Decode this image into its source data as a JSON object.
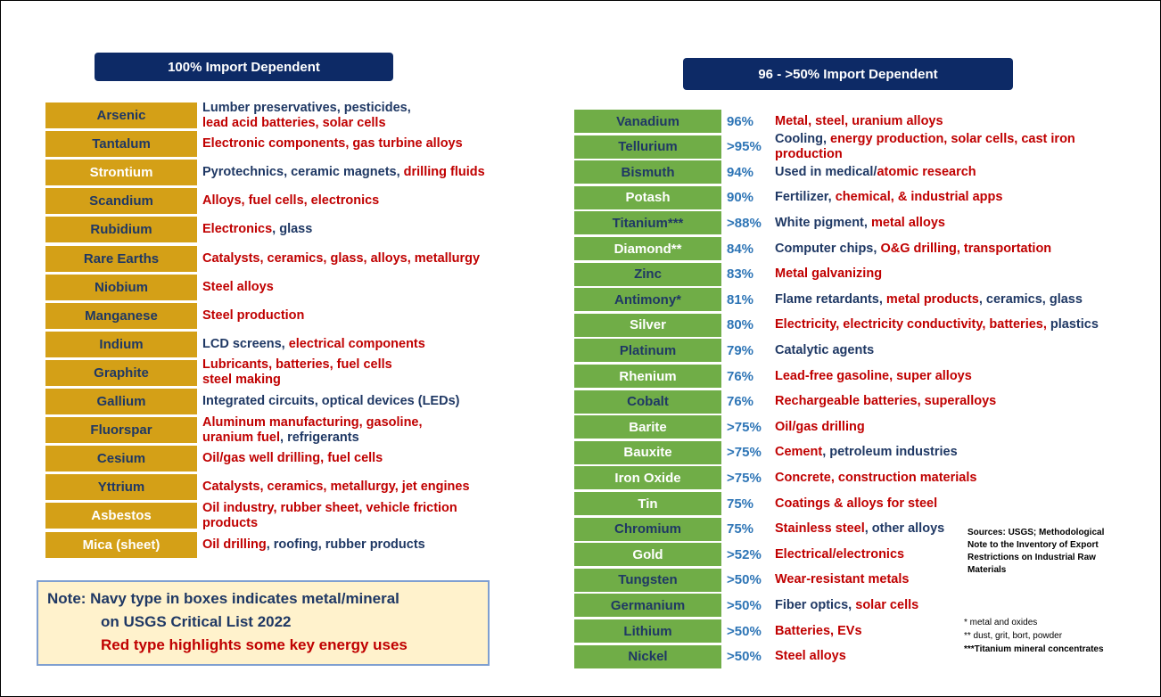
{
  "left": {
    "header": "100% Import Dependent",
    "items": [
      {
        "name": "Arsenic",
        "name_color": "navy",
        "lines": [
          [
            {
              "text": "Lumber preservatives, pesticides,",
              "color": "navy"
            }
          ],
          [
            {
              "text": "lead acid batteries, solar cells",
              "color": "red"
            }
          ]
        ]
      },
      {
        "name": "Tantalum",
        "name_color": "navy",
        "lines": [
          [
            {
              "text": "Electronic components, gas turbine alloys",
              "color": "red"
            }
          ]
        ]
      },
      {
        "name": "Strontium",
        "name_color": "white",
        "lines": [
          [
            {
              "text": "Pyrotechnics, ceramic magnets, ",
              "color": "navy"
            },
            {
              "text": "drilling fluids",
              "color": "red"
            }
          ]
        ]
      },
      {
        "name": "Scandium",
        "name_color": "navy",
        "lines": [
          [
            {
              "text": "Alloys, fuel cells, electronics",
              "color": "red"
            }
          ]
        ]
      },
      {
        "name": "Rubidium",
        "name_color": "navy",
        "lines": [
          [
            {
              "text": "Electronics",
              "color": "red"
            },
            {
              "text": ", glass",
              "color": "navy"
            }
          ]
        ]
      },
      {
        "name": "Rare Earths",
        "name_color": "navy",
        "lines": [
          [
            {
              "text": "Catalysts, ceramics, glass, alloys, metallurgy",
              "color": "red"
            }
          ]
        ]
      },
      {
        "name": "Niobium",
        "name_color": "navy",
        "lines": [
          [
            {
              "text": "Steel alloys",
              "color": "red"
            }
          ]
        ]
      },
      {
        "name": "Manganese",
        "name_color": "navy",
        "lines": [
          [
            {
              "text": "Steel production",
              "color": "red"
            }
          ]
        ]
      },
      {
        "name": "Indium",
        "name_color": "navy",
        "lines": [
          [
            {
              "text": "LCD screens, ",
              "color": "navy"
            },
            {
              "text": "electrical components",
              "color": "red"
            }
          ]
        ]
      },
      {
        "name": "Graphite",
        "name_color": "navy",
        "lines": [
          [
            {
              "text": "Lubricants, batteries, fuel cells",
              "color": "red"
            }
          ],
          [
            {
              "text": "steel making",
              "color": "red"
            }
          ]
        ]
      },
      {
        "name": "Gallium",
        "name_color": "navy",
        "lines": [
          [
            {
              "text": "Integrated circuits, optical devices (LEDs)",
              "color": "navy"
            }
          ]
        ]
      },
      {
        "name": "Fluorspar",
        "name_color": "navy",
        "lines": [
          [
            {
              "text": "Aluminum manufacturing, gasoline,",
              "color": "red"
            }
          ],
          [
            {
              "text": "uranium fuel",
              "color": "red"
            },
            {
              "text": ", refrigerants",
              "color": "navy"
            }
          ]
        ]
      },
      {
        "name": "Cesium",
        "name_color": "navy",
        "lines": [
          [
            {
              "text": "Oil/gas well drilling, fuel cells",
              "color": "red"
            }
          ]
        ]
      },
      {
        "name": "Yttrium",
        "name_color": "navy",
        "lines": [
          [
            {
              "text": "Catalysts, ceramics, metallurgy, jet engines",
              "color": "red"
            }
          ]
        ]
      },
      {
        "name": "Asbestos",
        "name_color": "white",
        "lines": [
          [
            {
              "text": "Oil industry, rubber sheet, vehicle friction",
              "color": "red"
            }
          ],
          [
            {
              "text": "products",
              "color": "red"
            }
          ]
        ]
      },
      {
        "name": "Mica (sheet)",
        "name_color": "white",
        "lines": [
          [
            {
              "text": "Oil drilling",
              "color": "red"
            },
            {
              "text": ", roofing, rubber products",
              "color": "navy"
            }
          ]
        ]
      }
    ]
  },
  "right": {
    "header": "96 - >50% Import Dependent",
    "items": [
      {
        "name": "Vanadium",
        "name_color": "navy",
        "pct": "96%",
        "lines": [
          [
            {
              "text": "Metal, steel, uranium alloys",
              "color": "red"
            }
          ]
        ]
      },
      {
        "name": "Tellurium",
        "name_color": "navy",
        "pct": ">95%",
        "lines": [
          [
            {
              "text": "Cooling, ",
              "color": "navy"
            },
            {
              "text": "energy production, solar cells, cast iron",
              "color": "red"
            }
          ],
          [
            {
              "text": "production",
              "color": "red"
            }
          ]
        ]
      },
      {
        "name": "Bismuth",
        "name_color": "navy",
        "pct": "94%",
        "lines": [
          [
            {
              "text": "Used in medical/",
              "color": "navy"
            },
            {
              "text": "atomic research",
              "color": "red"
            }
          ]
        ]
      },
      {
        "name": "Potash",
        "name_color": "white",
        "pct": "90%",
        "lines": [
          [
            {
              "text": "Fertilizer, ",
              "color": "navy"
            },
            {
              "text": "chemical, & industrial apps",
              "color": "red"
            }
          ]
        ]
      },
      {
        "name": "Titanium***",
        "name_color": "navy",
        "pct": ">88%",
        "lines": [
          [
            {
              "text": "White pigment, ",
              "color": "navy"
            },
            {
              "text": "metal alloys",
              "color": "red"
            }
          ]
        ]
      },
      {
        "name": "Diamond**",
        "name_color": "white",
        "pct": "84%",
        "lines": [
          [
            {
              "text": "Computer chips, ",
              "color": "navy"
            },
            {
              "text": "O&G drilling, transportation",
              "color": "red"
            }
          ]
        ]
      },
      {
        "name": "Zinc",
        "name_color": "navy",
        "pct": "83%",
        "lines": [
          [
            {
              "text": "Metal galvanizing",
              "color": "red"
            }
          ]
        ]
      },
      {
        "name": "Antimony*",
        "name_color": "navy",
        "pct": "81%",
        "lines": [
          [
            {
              "text": "Flame retardants, ",
              "color": "navy"
            },
            {
              "text": "metal products",
              "color": "red"
            },
            {
              "text": ", ceramics, glass",
              "color": "navy"
            }
          ]
        ]
      },
      {
        "name": "Silver",
        "name_color": "white",
        "pct": "80%",
        "lines": [
          [
            {
              "text": "Electricity, electricity conductivity, batteries, ",
              "color": "red"
            },
            {
              "text": "plastics",
              "color": "navy"
            }
          ]
        ]
      },
      {
        "name": "Platinum",
        "name_color": "navy",
        "pct": "79%",
        "lines": [
          [
            {
              "text": "Catalytic agents",
              "color": "navy"
            }
          ]
        ]
      },
      {
        "name": "Rhenium",
        "name_color": "white",
        "pct": "76%",
        "lines": [
          [
            {
              "text": "Lead-free gasoline, super alloys",
              "color": "red"
            }
          ]
        ]
      },
      {
        "name": "Cobalt",
        "name_color": "navy",
        "pct": "76%",
        "lines": [
          [
            {
              "text": "Rechargeable batteries, superalloys",
              "color": "red"
            }
          ]
        ]
      },
      {
        "name": "Barite",
        "name_color": "white",
        "pct": ">75%",
        "lines": [
          [
            {
              "text": "Oil/gas drilling",
              "color": "red"
            }
          ]
        ]
      },
      {
        "name": "Bauxite",
        "name_color": "white",
        "pct": ">75%",
        "lines": [
          [
            {
              "text": "Cement",
              "color": "red"
            },
            {
              "text": ", petroleum industries",
              "color": "navy"
            }
          ]
        ]
      },
      {
        "name": "Iron Oxide",
        "name_color": "white",
        "pct": ">75%",
        "lines": [
          [
            {
              "text": "Concrete, construction materials",
              "color": "red"
            }
          ]
        ]
      },
      {
        "name": "Tin",
        "name_color": "white",
        "pct": "75%",
        "lines": [
          [
            {
              "text": "Coatings & alloys for steel",
              "color": "red"
            }
          ]
        ]
      },
      {
        "name": "Chromium",
        "name_color": "navy",
        "pct": "75%",
        "lines": [
          [
            {
              "text": "Stainless steel",
              "color": "red"
            },
            {
              "text": ", other alloys",
              "color": "navy"
            }
          ]
        ]
      },
      {
        "name": "Gold",
        "name_color": "white",
        "pct": ">52%",
        "lines": [
          [
            {
              "text": "Electrical/electronics",
              "color": "red"
            }
          ]
        ]
      },
      {
        "name": "Tungsten",
        "name_color": "navy",
        "pct": ">50%",
        "lines": [
          [
            {
              "text": "Wear-resistant metals",
              "color": "red"
            }
          ]
        ]
      },
      {
        "name": "Germanium",
        "name_color": "navy",
        "pct": ">50%",
        "lines": [
          [
            {
              "text": "Fiber optics, ",
              "color": "navy"
            },
            {
              "text": "solar cells",
              "color": "red"
            }
          ]
        ]
      },
      {
        "name": "Lithium",
        "name_color": "navy",
        "pct": ">50%",
        "lines": [
          [
            {
              "text": "Batteries, EVs",
              "color": "red"
            }
          ]
        ]
      },
      {
        "name": "Nickel",
        "name_color": "navy",
        "pct": ">50%",
        "lines": [
          [
            {
              "text": "Steel alloys",
              "color": "red"
            }
          ]
        ]
      }
    ]
  },
  "note": {
    "lines": [
      "Note: Navy type in boxes indicates metal/mineral",
      "on USGS Critical List 2022",
      "Red type highlights some key energy uses"
    ]
  },
  "sources": "Sources: USGS; Methodological Note to the Inventory of Export Restrictions on Industrial Raw Materials",
  "footnotes": [
    "* metal and oxides",
    "** dust, grit, bort, powder",
    "***Titanium mineral concentrates"
  ]
}
